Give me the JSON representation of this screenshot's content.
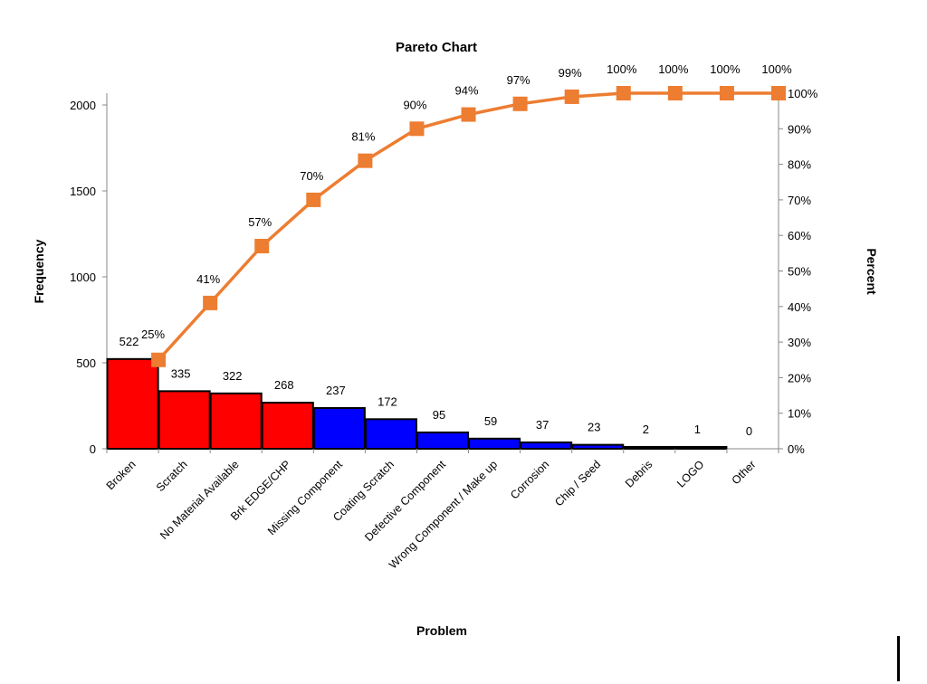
{
  "chart_data": {
    "type": "bar",
    "title": "Pareto Chart",
    "xlabel": "Problem",
    "ylabel": "Frequency",
    "y2label": "Percent",
    "ylim": [
      0,
      2000
    ],
    "y2lim": [
      0,
      100
    ],
    "yticks": [
      "0",
      "500",
      "1000",
      "1500",
      "2000"
    ],
    "y2ticks": [
      "0%",
      "10%",
      "20%",
      "30%",
      "40%",
      "50%",
      "60%",
      "70%",
      "80%",
      "90%",
      "100%"
    ],
    "categories": [
      "Broken",
      "Scratch",
      "No Material Available",
      "Brk EDGE/CHP",
      "Missing Component",
      "Coating Scratch",
      "Defective Component",
      "Wrong Component / Make up",
      "Corrosion",
      "Chip / Seed",
      "Debris",
      "LOGO",
      "Other"
    ],
    "series": [
      {
        "type": "bar",
        "values": [
          522,
          335,
          322,
          268,
          237,
          172,
          95,
          59,
          37,
          23,
          2,
          1,
          0
        ],
        "value_labels": [
          "522",
          "335",
          "322",
          "268",
          "237",
          "172",
          "95",
          "59",
          "37",
          "23",
          "2",
          "1",
          "0"
        ],
        "bar_colors": [
          "#ff0000",
          "#ff0000",
          "#ff0000",
          "#ff0000",
          "#0000ff",
          "#0000ff",
          "#0000ff",
          "#0000ff",
          "#0000ff",
          "#0000ff",
          "#0000ff",
          "#0000ff",
          "#0000ff"
        ]
      },
      {
        "type": "line",
        "axis": "right",
        "color": "#ed7d31",
        "values": [
          25,
          41,
          57,
          70,
          81,
          90,
          94,
          97,
          99,
          100,
          100,
          100,
          100
        ],
        "value_labels": [
          "25%",
          "41%",
          "57%",
          "70%",
          "81%",
          "90%",
          "94%",
          "97%",
          "99%",
          "100%",
          "100%",
          "100%",
          "100%"
        ]
      }
    ],
    "legend": "none",
    "grid": false
  }
}
